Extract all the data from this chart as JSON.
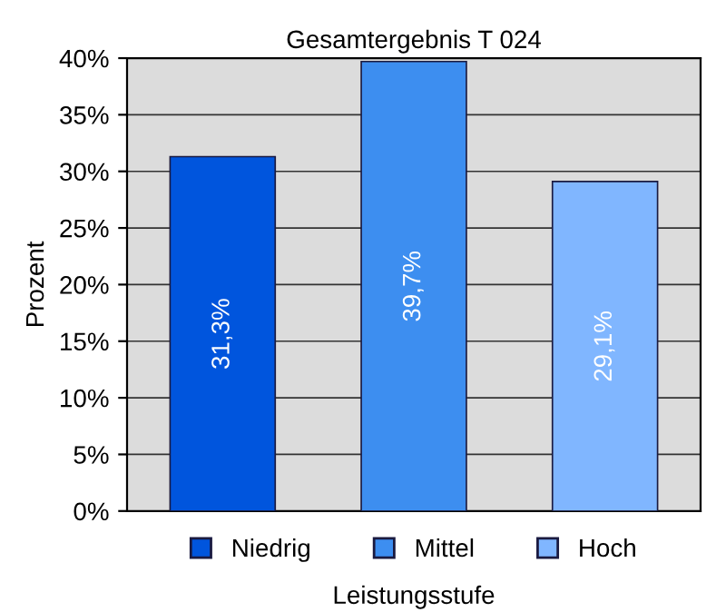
{
  "chart_data": {
    "type": "bar",
    "title": "Gesamtergebnis T 024",
    "xlabel": "Leistungsstufe",
    "ylabel": "Prozent",
    "categories": [
      null,
      null,
      null
    ],
    "series": [
      {
        "name": "Niedrig",
        "color": "#0055dd",
        "values": [
          31.3,
          null,
          null
        ],
        "value_labels": [
          "31,3%",
          null,
          null
        ]
      },
      {
        "name": "Mittel",
        "color": "#3d8ef0",
        "values": [
          null,
          39.7,
          null
        ],
        "value_labels": [
          null,
          "39,7%",
          null
        ]
      },
      {
        "name": "Hoch",
        "color": "#80b6ff",
        "values": [
          null,
          null,
          29.1
        ],
        "value_labels": [
          null,
          null,
          "29,1%"
        ]
      }
    ],
    "ylim": [
      0,
      40
    ],
    "yticks": [
      {
        "value": 0,
        "label": "0%"
      },
      {
        "value": 5,
        "label": "5%"
      },
      {
        "value": 10,
        "label": "10%"
      },
      {
        "value": 15,
        "label": "15%"
      },
      {
        "value": 20,
        "label": "20%"
      },
      {
        "value": 25,
        "label": "25%"
      },
      {
        "value": 30,
        "label": "30%"
      },
      {
        "value": 35,
        "label": "35%"
      },
      {
        "value": 40,
        "label": "40%"
      }
    ],
    "grid": "y",
    "legend": "bottom"
  }
}
